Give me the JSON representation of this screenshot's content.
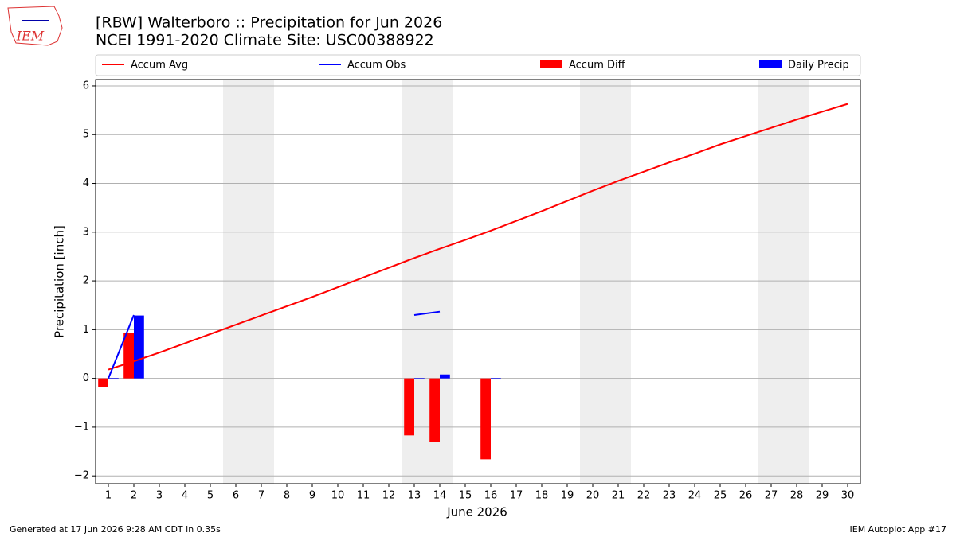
{
  "chart_data": {
    "type": "bar_line",
    "title": "[RBW] Walterboro :: Precipitation for Jun 2026",
    "subtitle": "NCEI 1991-2020 Climate Site: USC00388922",
    "xlabel": "June 2026",
    "ylabel": "Precipitation [inch]",
    "logo_text": "IEM",
    "footnote_left": "Generated at 17 Jun 2026 9:28 AM CDT in 0.35s",
    "footnote_right": "IEM Autoplot App #17",
    "x": [
      1,
      2,
      3,
      4,
      5,
      6,
      7,
      8,
      9,
      10,
      11,
      12,
      13,
      14,
      15,
      16,
      17,
      18,
      19,
      20,
      21,
      22,
      23,
      24,
      25,
      26,
      27,
      28,
      29,
      30
    ],
    "xlim": [
      0.5,
      30.5
    ],
    "xticks": [
      1,
      2,
      3,
      4,
      5,
      6,
      7,
      8,
      9,
      10,
      11,
      12,
      13,
      14,
      15,
      16,
      17,
      18,
      19,
      20,
      21,
      22,
      23,
      24,
      25,
      26,
      27,
      28,
      29,
      30
    ],
    "ylim": [
      -2.16,
      6.13
    ],
    "yticks": [
      {
        "value": -2,
        "label": "−2"
      },
      {
        "value": -1,
        "label": "−1"
      },
      0,
      1,
      2,
      3,
      4,
      5,
      6
    ],
    "grid": true,
    "legend": "upper center outside",
    "shaded_spans": [
      [
        5.5,
        7.5
      ],
      [
        12.5,
        14.5
      ],
      [
        19.5,
        21.5
      ],
      [
        26.5,
        28.5
      ]
    ],
    "shade_color": "#eeeeee",
    "series": [
      {
        "name": "Accum Avg",
        "kind": "line",
        "color": "#ff0000",
        "values": [
          0.18,
          0.35,
          0.53,
          0.72,
          0.91,
          1.1,
          1.29,
          1.48,
          1.67,
          1.87,
          2.07,
          2.27,
          2.47,
          2.66,
          2.84,
          3.03,
          3.23,
          3.43,
          3.64,
          3.85,
          4.05,
          4.24,
          4.43,
          4.61,
          4.8,
          4.97,
          5.14,
          5.31,
          5.47,
          5.63
        ]
      },
      {
        "name": "Accum Obs",
        "kind": "line",
        "color": "#0000ff",
        "values": [
          0.0,
          1.3,
          null,
          null,
          null,
          null,
          null,
          null,
          null,
          null,
          null,
          null,
          1.3,
          1.37,
          null,
          null,
          null,
          null,
          null,
          null,
          null,
          null,
          null,
          null,
          null,
          null,
          null,
          null,
          null,
          null
        ]
      },
      {
        "name": "Accum Diff",
        "kind": "bar",
        "color": "#ff0000",
        "values": [
          -0.17,
          0.93,
          null,
          null,
          null,
          null,
          null,
          null,
          null,
          null,
          null,
          null,
          -1.17,
          -1.3,
          null,
          -1.66,
          null,
          null,
          null,
          null,
          null,
          null,
          null,
          null,
          null,
          null,
          null,
          null,
          null,
          null
        ]
      },
      {
        "name": "Daily Precip",
        "kind": "bar",
        "color": "#0000ff",
        "values": [
          0.01,
          1.29,
          null,
          null,
          null,
          null,
          null,
          null,
          null,
          null,
          null,
          null,
          0.01,
          0.08,
          null,
          0.01,
          null,
          null,
          null,
          null,
          null,
          null,
          null,
          null,
          null,
          null,
          null,
          null,
          null,
          null
        ]
      }
    ]
  }
}
